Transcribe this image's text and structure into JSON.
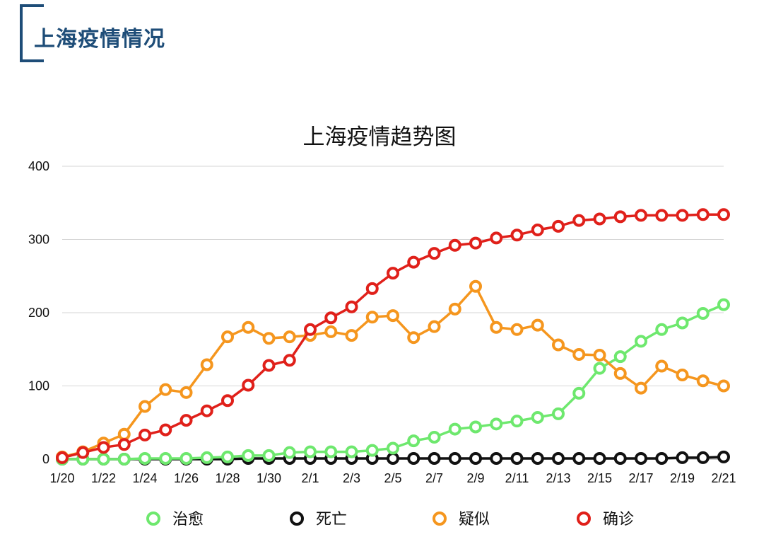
{
  "page": {
    "title": "上海疫情情况"
  },
  "chart_data": {
    "type": "line",
    "title": "上海疫情趋势图",
    "xlabel": "",
    "ylabel": "",
    "ylim": [
      0,
      400
    ],
    "yticks": [
      0,
      100,
      200,
      300,
      400
    ],
    "grid": true,
    "legend_position": "bottom",
    "x": [
      "1/20",
      "1/21",
      "1/22",
      "1/23",
      "1/24",
      "1/25",
      "1/26",
      "1/27",
      "1/28",
      "1/29",
      "1/30",
      "1/31",
      "2/1",
      "2/2",
      "2/3",
      "2/4",
      "2/5",
      "2/6",
      "2/7",
      "2/8",
      "2/9",
      "2/10",
      "2/11",
      "2/12",
      "2/13",
      "2/14",
      "2/15",
      "2/16",
      "2/17",
      "2/18",
      "2/19",
      "2/20",
      "2/21"
    ],
    "x_tick_labels": [
      "1/20",
      "1/22",
      "1/24",
      "1/26",
      "1/28",
      "1/30",
      "2/1",
      "2/3",
      "2/5",
      "2/7",
      "2/9",
      "2/11",
      "2/13",
      "2/15",
      "2/17",
      "2/19",
      "2/21"
    ],
    "series": [
      {
        "name": "治愈",
        "color": "#6ee86e",
        "values": [
          0,
          0,
          0,
          0,
          1,
          1,
          1,
          2,
          3,
          5,
          5,
          9,
          10,
          10,
          10,
          12,
          15,
          25,
          30,
          41,
          44,
          48,
          52,
          57,
          62,
          90,
          124,
          140,
          161,
          177,
          186,
          199,
          211
        ]
      },
      {
        "name": "死亡",
        "color": "#111111",
        "values": [
          0,
          0,
          0,
          0,
          0,
          0,
          0,
          0,
          0,
          1,
          1,
          1,
          1,
          1,
          1,
          1,
          1,
          1,
          1,
          1,
          1,
          1,
          1,
          1,
          1,
          1,
          1,
          1,
          1,
          1,
          2,
          2,
          3
        ]
      },
      {
        "name": "疑似",
        "color": "#f5961e",
        "values": [
          3,
          10,
          22,
          34,
          72,
          95,
          91,
          129,
          167,
          180,
          165,
          167,
          169,
          174,
          169,
          194,
          196,
          166,
          181,
          205,
          236,
          180,
          177,
          183,
          156,
          143,
          142,
          117,
          97,
          127,
          115,
          107,
          100
        ]
      },
      {
        "name": "确诊",
        "color": "#e0201a",
        "values": [
          2,
          9,
          16,
          20,
          33,
          40,
          53,
          66,
          80,
          101,
          128,
          135,
          177,
          193,
          208,
          233,
          254,
          269,
          281,
          292,
          295,
          302,
          306,
          313,
          318,
          326,
          328,
          331,
          333,
          333,
          333,
          334,
          334
        ]
      }
    ]
  }
}
